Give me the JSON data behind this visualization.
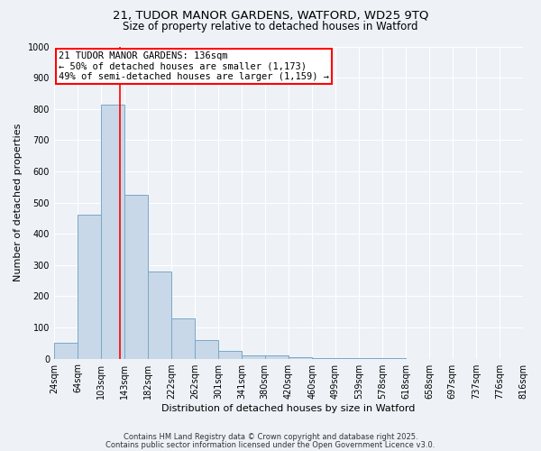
{
  "title_line1": "21, TUDOR MANOR GARDENS, WATFORD, WD25 9TQ",
  "title_line2": "Size of property relative to detached houses in Watford",
  "xlabel": "Distribution of detached houses by size in Watford",
  "ylabel": "Number of detached properties",
  "bar_edges": [
    24,
    64,
    103,
    143,
    182,
    222,
    262,
    301,
    341,
    380,
    420,
    460,
    499,
    539,
    578,
    618,
    658,
    697,
    737,
    776,
    816
  ],
  "bar_heights": [
    50,
    460,
    815,
    525,
    280,
    128,
    60,
    25,
    10,
    10,
    5,
    2,
    1,
    1,
    1,
    0,
    0,
    0,
    0,
    0
  ],
  "bar_facecolor": "#c8d8e8",
  "bar_edgecolor": "#7aa8c8",
  "vline_x": 136,
  "vline_color": "red",
  "annotation_text": "21 TUDOR MANOR GARDENS: 136sqm\n← 50% of detached houses are smaller (1,173)\n49% of semi-detached houses are larger (1,159) →",
  "annotation_box_facecolor": "white",
  "annotation_box_edgecolor": "red",
  "ylim": [
    0,
    1000
  ],
  "yticks": [
    0,
    100,
    200,
    300,
    400,
    500,
    600,
    700,
    800,
    900,
    1000
  ],
  "background_color": "#eef2f7",
  "footer_line1": "Contains HM Land Registry data © Crown copyright and database right 2025.",
  "footer_line2": "Contains public sector information licensed under the Open Government Licence v3.0.",
  "title_fontsize": 9.5,
  "subtitle_fontsize": 8.5,
  "axis_label_fontsize": 8,
  "tick_fontsize": 7,
  "footer_fontsize": 6,
  "annotation_fontsize": 7.5
}
